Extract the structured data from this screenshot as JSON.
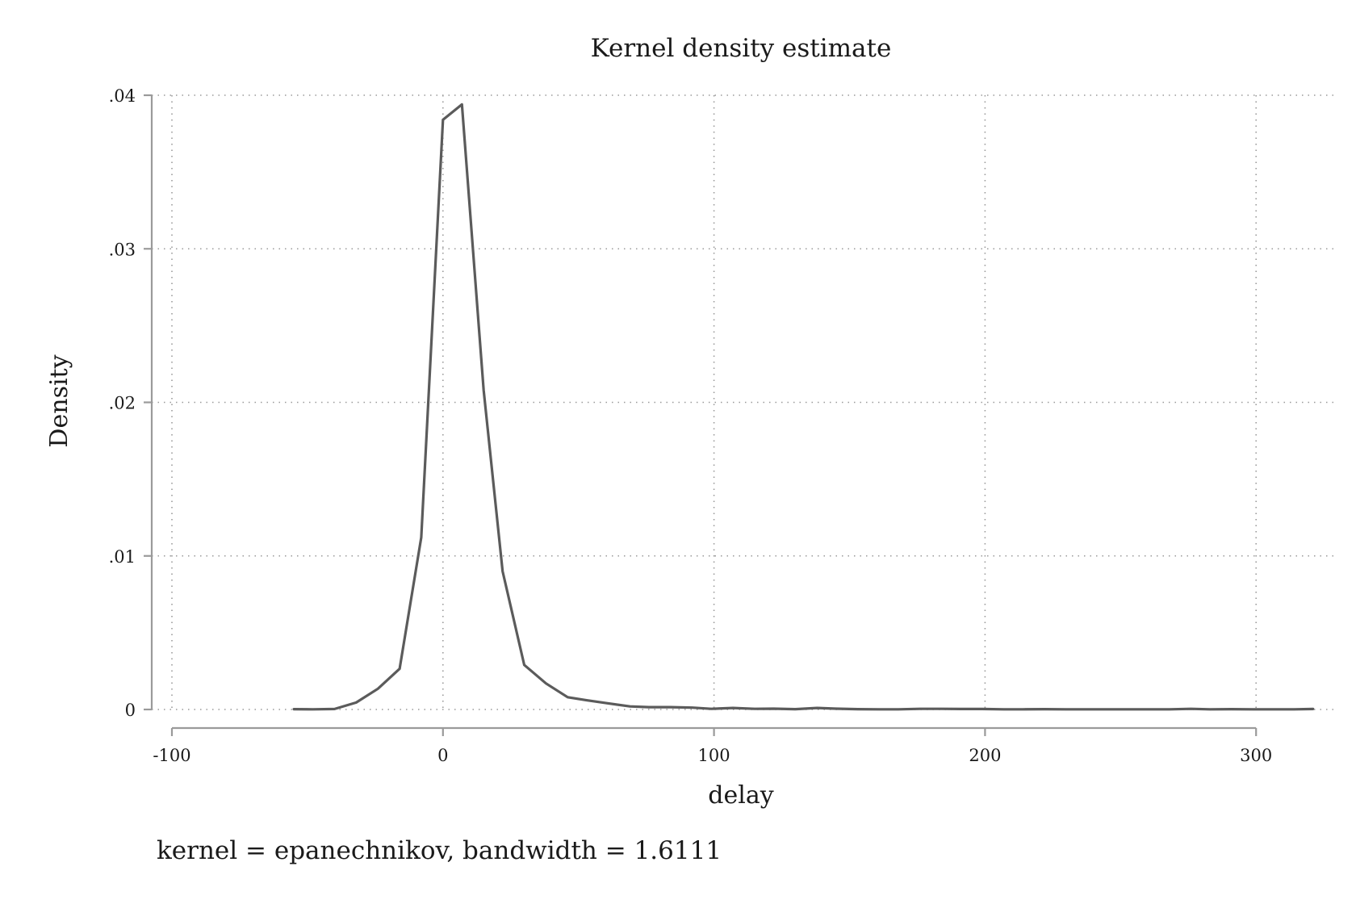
{
  "chart_data": {
    "type": "line",
    "title": "Kernel density estimate",
    "xlabel": "delay",
    "ylabel": "Density",
    "note": "kernel = epanechnikov, bandwidth = 1.6111",
    "xlim": [
      -100,
      325
    ],
    "ylim": [
      0,
      0.04
    ],
    "x_ticks": [
      {
        "value": -100,
        "label": "-100"
      },
      {
        "value": 0,
        "label": "0"
      },
      {
        "value": 100,
        "label": "100"
      },
      {
        "value": 200,
        "label": "200"
      },
      {
        "value": 300,
        "label": "300"
      }
    ],
    "y_ticks": [
      {
        "value": 0,
        "label": "0"
      },
      {
        "value": 0.01,
        "label": ".01"
      },
      {
        "value": 0.02,
        "label": ".02"
      },
      {
        "value": 0.03,
        "label": ".03"
      },
      {
        "value": 0.04,
        "label": ".04"
      }
    ],
    "grid": true,
    "line_color": "#5b5b5b",
    "series": [
      {
        "x": [
          -55,
          -48,
          -40,
          -32,
          -24,
          -16,
          -8,
          0,
          7,
          15,
          22,
          30,
          38,
          46,
          53,
          61,
          69,
          76,
          84,
          92,
          99,
          107,
          115,
          122,
          130,
          138,
          145,
          153,
          161,
          168,
          176,
          184,
          191,
          199,
          207,
          214,
          222,
          230,
          237,
          245,
          253,
          260,
          268,
          276,
          283,
          291,
          299,
          306,
          314,
          321
        ],
        "y": [
          2e-05,
          1e-05,
          3e-05,
          0.00045,
          0.00135,
          0.00265,
          0.0112,
          0.0384,
          0.0394,
          0.0208,
          0.009,
          0.0029,
          0.0017,
          0.0008,
          0.0006,
          0.0004,
          0.0002,
          0.00015,
          0.00015,
          0.00012,
          4e-05,
          0.0001,
          4e-05,
          5e-05,
          2e-05,
          0.0001,
          5e-05,
          2e-05,
          1e-05,
          1e-05,
          4e-05,
          4e-05,
          3e-05,
          3e-05,
          1e-05,
          1e-05,
          2e-05,
          1e-05,
          1e-05,
          1e-05,
          1e-05,
          1e-05,
          1e-05,
          4e-05,
          1e-05,
          2e-05,
          1e-05,
          1e-05,
          1e-05,
          3e-05
        ]
      }
    ]
  }
}
